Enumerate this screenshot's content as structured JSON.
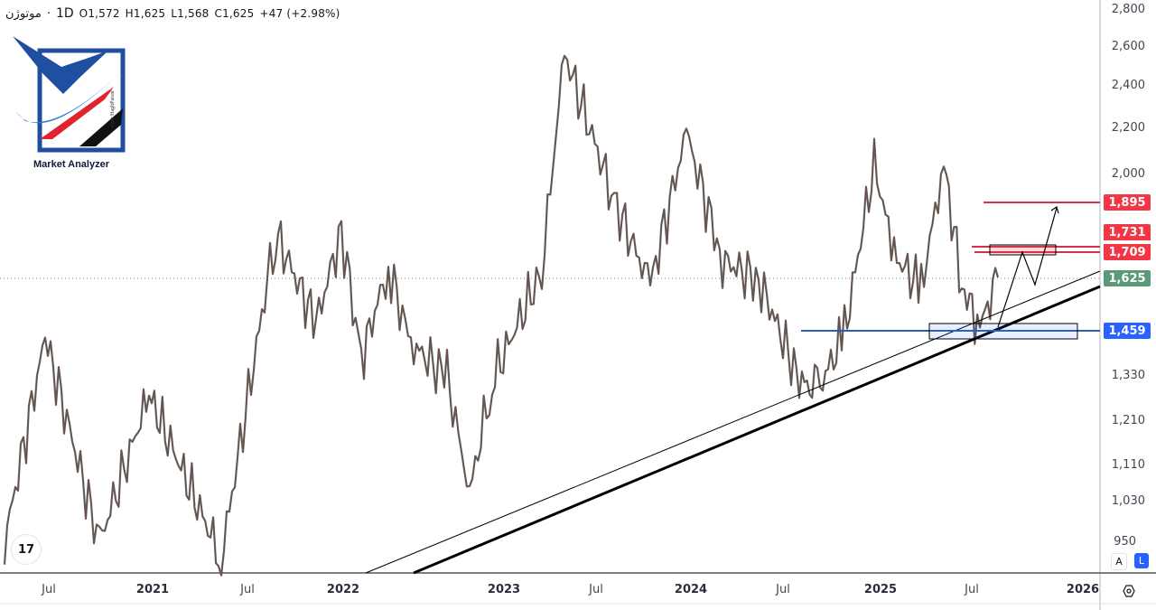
{
  "legend": {
    "symbol": "موتوژن",
    "separator": "·",
    "timeframe": "1D",
    "open": "O1,572",
    "high": "H1,625",
    "low": "L1,568",
    "close": "C1,625",
    "change": "+47 (+2.98%)"
  },
  "logo": {
    "text": "Market Analyzer",
    "signature": "Amir HaghParast"
  },
  "price_axis": {
    "ticks": [
      "2,800",
      "2,600",
      "2,400",
      "2,200",
      "2,000",
      "1,330",
      "1,210",
      "1,110",
      "1,030",
      "950"
    ],
    "tags": [
      {
        "label": "1,895",
        "color": "#f23645"
      },
      {
        "label": "1,731",
        "color": "#f23645"
      },
      {
        "label": "1,709",
        "color": "#f23645"
      },
      {
        "label": "1,625",
        "color": "#5b9a78"
      },
      {
        "label": "1,459",
        "color": "#2962ff"
      }
    ],
    "scale_buttons": {
      "auto": "A",
      "log": "L"
    }
  },
  "time_axis": {
    "labels": [
      "Jul",
      "2021",
      "Jul",
      "2022",
      "2023",
      "Jul",
      "2024",
      "Jul",
      "2025",
      "Jul",
      "2026"
    ]
  },
  "tradingview_badge": "17",
  "chart_data": {
    "type": "line",
    "title": "موتوژن · 1D",
    "subtitle": "O1,572 H1,625 L1,568 C1,625 +47 (+2.98%)",
    "xlabel": "",
    "ylabel": "",
    "y_scale": "log",
    "ylim": [
      900,
      2850
    ],
    "grid": false,
    "x": [
      "2020-05",
      "2020-07",
      "2020-10",
      "2021-01",
      "2021-04",
      "2021-07",
      "2021-09",
      "2021-12",
      "2022-01",
      "2022-04",
      "2022-06",
      "2022-09",
      "2022-11",
      "2023-01",
      "2023-03",
      "2023-05",
      "2023-07",
      "2023-09",
      "2023-12",
      "2024-03",
      "2024-05",
      "2024-07",
      "2024-08",
      "2024-10",
      "2024-12",
      "2025-01",
      "2025-03",
      "2025-05",
      "2025-06",
      "2025-07",
      "2025-08"
    ],
    "series": [
      {
        "name": "Close (approx.)",
        "values": [
          950,
          1440,
          950,
          1280,
          920,
          1780,
          1480,
          1790,
          1380,
          1660,
          1420,
          1330,
          1050,
          1320,
          1650,
          2560,
          1900,
          1600,
          2180,
          1680,
          1620,
          1320,
          1290,
          1450,
          2050,
          1700,
          1590,
          2050,
          1600,
          1470,
          1625
        ]
      }
    ],
    "horizontal_levels": [
      {
        "value": 1895,
        "color": "#f23645",
        "label": "1,895"
      },
      {
        "value": 1731,
        "color": "#f23645",
        "label": "1,731"
      },
      {
        "value": 1709,
        "color": "#f23645",
        "label": "1,709"
      },
      {
        "value": 1459,
        "color": "#2962ff",
        "label": "1,459"
      },
      {
        "value": 1625,
        "color": "#5b9a78",
        "label": "1,625",
        "style": "dotted-last-price"
      }
    ],
    "annotations": [
      "Thin ascending trendline from 2022-12 low through 2024-08 lows",
      "Thick ascending trendline from 2023-01 through 2024-10 low",
      "Support zone box around 1,459",
      "Resistance zone box around 1,709-1,731",
      "Projected zigzag path: 1,459 → 1,709 → 1,600 → 1,895"
    ]
  }
}
